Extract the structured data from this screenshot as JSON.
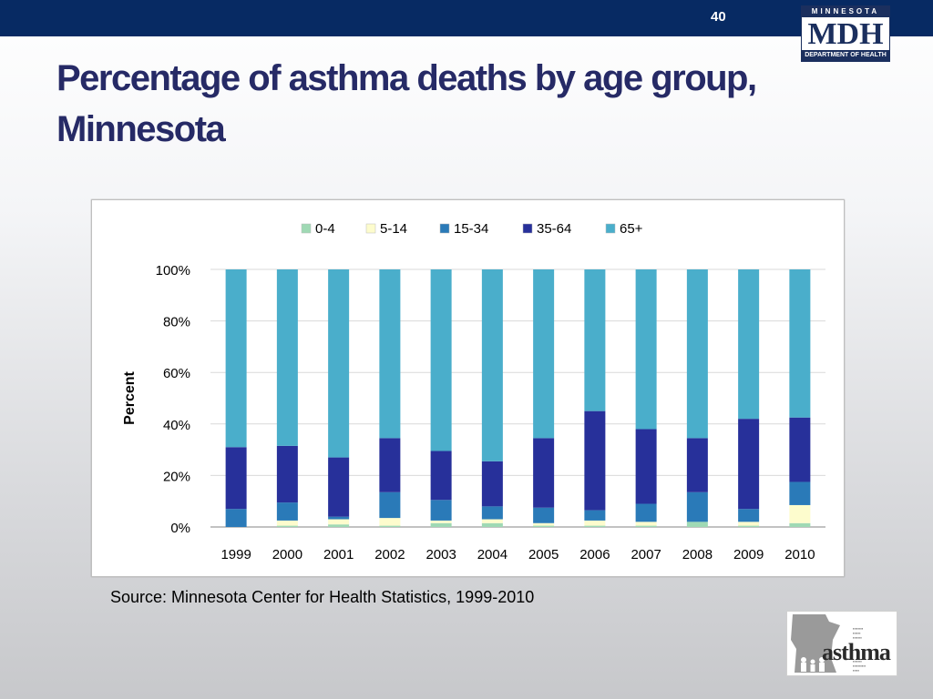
{
  "slide": {
    "number": "40",
    "title_line1": "Percentage of asthma deaths by age group,",
    "title_line2": "Minnesota",
    "source": "Source: Minnesota Center for Health Statistics, 1999-2010"
  },
  "logos": {
    "mdh_top": "MINNESOTA",
    "mdh_mid": "MDH",
    "mdh_bottom": "DEPARTMENT OF HEALTH",
    "asthma_word": "asthma"
  },
  "colors": {
    "topbar": "#072a63",
    "title": "#262a66",
    "series": [
      "#9fd9b4",
      "#fdfccd",
      "#2a7ab8",
      "#27309a",
      "#4aaecb"
    ]
  },
  "chart_data": {
    "type": "bar",
    "stacked": true,
    "title": "",
    "xlabel": "",
    "ylabel": "Percent",
    "ylim": [
      0,
      100
    ],
    "yticks": [
      "0%",
      "20%",
      "40%",
      "60%",
      "80%",
      "100%"
    ],
    "grid": true,
    "legend_position": "top",
    "categories": [
      "1999",
      "2000",
      "2001",
      "2002",
      "2003",
      "2004",
      "2005",
      "2006",
      "2007",
      "2008",
      "2009",
      "2010"
    ],
    "series": [
      {
        "name": "0-4",
        "values": [
          0,
          0.5,
          1,
          0.5,
          1.5,
          1.5,
          0.5,
          0.5,
          0.5,
          2,
          0.5,
          1.5
        ]
      },
      {
        "name": "5-14",
        "values": [
          0,
          2,
          2,
          3,
          1,
          1.5,
          1,
          2,
          1.5,
          0,
          1.5,
          7
        ]
      },
      {
        "name": "15-34",
        "values": [
          7,
          7,
          1,
          10,
          8,
          5,
          6,
          4,
          7,
          11.5,
          5,
          9
        ]
      },
      {
        "name": "35-64",
        "values": [
          24,
          22,
          23,
          21,
          19,
          17.5,
          27,
          38.5,
          29,
          21,
          35,
          25
        ]
      },
      {
        "name": "65+",
        "values": [
          69,
          68.5,
          73,
          65.5,
          70.5,
          74.5,
          65.5,
          55,
          62,
          65.5,
          58,
          57.5
        ]
      }
    ]
  }
}
